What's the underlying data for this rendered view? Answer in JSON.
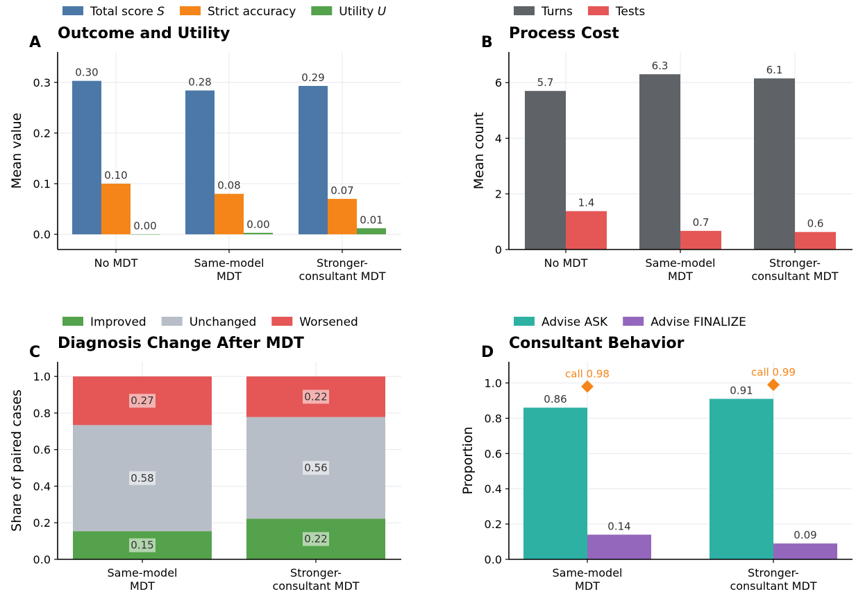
{
  "chart_data": [
    {
      "panel": "A",
      "type": "bar",
      "title": "Outcome and Utility",
      "ylabel": "Mean value",
      "categories": [
        [
          "No MDT"
        ],
        [
          "Same-model",
          "MDT"
        ],
        [
          "Stronger-",
          "consultant MDT"
        ]
      ],
      "ylim": [
        -0.03,
        0.36
      ],
      "yticks": [
        0.0,
        0.1,
        0.2,
        0.3
      ],
      "ytick_labels": [
        "0.0",
        "0.1",
        "0.2",
        "0.3"
      ],
      "legend": "top",
      "grid": true,
      "series": [
        {
          "name": "Total score S",
          "color": "#4c78a8",
          "values": [
            0.303,
            0.284,
            0.293
          ],
          "labels": [
            "0.30",
            "0.28",
            "0.29"
          ]
        },
        {
          "name": "Strict accuracy",
          "color": "#f58518",
          "values": [
            0.1,
            0.08,
            0.07
          ],
          "labels": [
            "0.10",
            "0.08",
            "0.07"
          ]
        },
        {
          "name": "Utility U",
          "color": "#54a24b",
          "values": [
            0.0,
            0.003,
            0.012
          ],
          "labels": [
            "0.00",
            "0.00",
            "0.01"
          ]
        }
      ]
    },
    {
      "panel": "B",
      "type": "bar",
      "title": "Process Cost",
      "ylabel": "Mean count",
      "categories": [
        [
          "No MDT"
        ],
        [
          "Same-model",
          "MDT"
        ],
        [
          "Stronger-",
          "consultant MDT"
        ]
      ],
      "ylim": [
        0,
        7.1
      ],
      "yticks": [
        0,
        2,
        4,
        6
      ],
      "ytick_labels": [
        "0",
        "2",
        "4",
        "6"
      ],
      "legend": "top",
      "grid": true,
      "series": [
        {
          "name": "Turns",
          "color": "#5f6368",
          "values": [
            5.7,
            6.3,
            6.15
          ],
          "labels": [
            "5.7",
            "6.3",
            "6.1"
          ]
        },
        {
          "name": "Tests",
          "color": "#e45756",
          "values": [
            1.38,
            0.67,
            0.63
          ],
          "labels": [
            "1.4",
            "0.7",
            "0.6"
          ]
        }
      ]
    },
    {
      "panel": "C",
      "type": "bar",
      "stacked": true,
      "title": "Diagnosis Change After MDT",
      "ylabel": "Share of paired cases",
      "categories": [
        [
          "Same-model",
          "MDT"
        ],
        [
          "Stronger-",
          "consultant MDT"
        ]
      ],
      "ylim": [
        0,
        1.08
      ],
      "yticks": [
        0.0,
        0.2,
        0.4,
        0.6,
        0.8,
        1.0
      ],
      "ytick_labels": [
        "0.0",
        "0.2",
        "0.4",
        "0.6",
        "0.8",
        "1.0"
      ],
      "legend": "top",
      "grid": true,
      "series": [
        {
          "name": "Improved",
          "color": "#54a24b",
          "values": [
            0.154,
            0.222
          ],
          "labels": [
            "0.15",
            "0.22"
          ]
        },
        {
          "name": "Unchanged",
          "color": "#b8bec7",
          "values": [
            0.58,
            0.556
          ],
          "labels": [
            "0.58",
            "0.56"
          ]
        },
        {
          "name": "Worsened",
          "color": "#e45756",
          "values": [
            0.266,
            0.222
          ],
          "labels": [
            "0.27",
            "0.22"
          ]
        }
      ]
    },
    {
      "panel": "D",
      "type": "bar",
      "title": "Consultant Behavior",
      "ylabel": "Proportion",
      "categories": [
        [
          "Same-model",
          "MDT"
        ],
        [
          "Stronger-",
          "consultant MDT"
        ]
      ],
      "ylim": [
        0,
        1.12
      ],
      "yticks": [
        0.0,
        0.2,
        0.4,
        0.6,
        0.8,
        1.0
      ],
      "ytick_labels": [
        "0.0",
        "0.2",
        "0.4",
        "0.6",
        "0.8",
        "1.0"
      ],
      "legend": "top",
      "grid": true,
      "series": [
        {
          "name": "Advise ASK",
          "color": "#2db1a3",
          "values": [
            0.86,
            0.91
          ],
          "labels": [
            "0.86",
            "0.91"
          ]
        },
        {
          "name": "Advise FINALIZE",
          "color": "#9467bd",
          "values": [
            0.14,
            0.09
          ],
          "labels": [
            "0.14",
            "0.09"
          ]
        }
      ],
      "markers": {
        "color": "#f58518",
        "values": [
          0.98,
          0.99
        ],
        "labels": [
          "call 0.98",
          "call 0.99"
        ]
      }
    }
  ]
}
